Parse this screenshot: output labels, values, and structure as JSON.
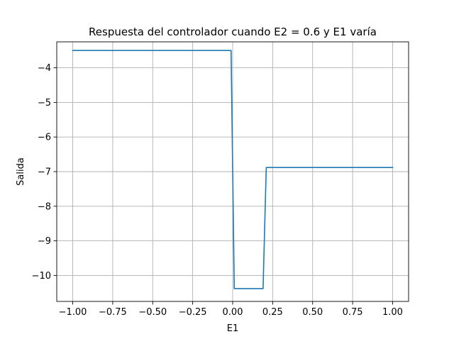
{
  "chart_data": {
    "type": "line",
    "title": "Respuesta del controlador cuando E2 = 0.6 y E1 varía",
    "xlabel": "E1",
    "ylabel": "Salida",
    "xlim": [
      -1.1,
      1.1
    ],
    "ylim": [
      -10.75,
      -3.25
    ],
    "grid": true,
    "x_ticks": [
      -1.0,
      -0.75,
      -0.5,
      -0.25,
      0.0,
      0.25,
      0.5,
      0.75,
      1.0
    ],
    "x_tick_labels": [
      "−1.00",
      "−0.75",
      "−0.50",
      "−0.25",
      "0.00",
      "0.25",
      "0.50",
      "0.75",
      "1.00"
    ],
    "y_ticks": [
      -10,
      -9,
      -8,
      -7,
      -6,
      -5,
      -4
    ],
    "y_tick_labels": [
      "−10",
      "−9",
      "−8",
      "−7",
      "−6",
      "−5",
      "−4"
    ],
    "series": [
      {
        "color": "#1f77b4",
        "x": [
          -1.0,
          -0.01,
          0.01,
          0.19,
          0.21,
          1.0
        ],
        "y": [
          -3.5,
          -3.5,
          -10.38,
          -10.38,
          -6.88,
          -6.88
        ]
      }
    ]
  }
}
